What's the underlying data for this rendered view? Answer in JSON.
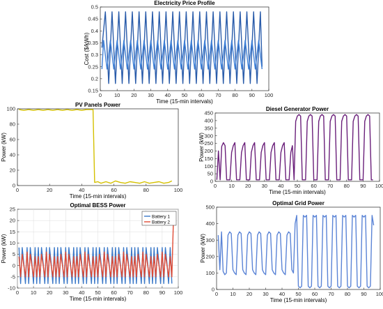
{
  "chart_data": [
    {
      "id": "price",
      "type": "line",
      "title": "Electricity Price Profile",
      "xlabel": "Time (15-min intervals)",
      "ylabel": "Cost ($/kWh)",
      "xlim": [
        0,
        100
      ],
      "ylim": [
        0.15,
        0.5
      ],
      "xticks": [
        "0",
        "10",
        "20",
        "30",
        "40",
        "50",
        "60",
        "70",
        "80",
        "90",
        "100"
      ],
      "yticks": [
        "0.15",
        "0.2",
        "0.25",
        "0.3",
        "0.35",
        "0.4",
        "0.45",
        "0.5"
      ],
      "grid": false,
      "series": [
        {
          "color": "#2a5caa",
          "x": [
            1,
            3,
            5,
            7,
            9,
            11,
            13,
            15,
            17,
            19,
            21,
            23,
            25,
            27,
            29,
            31,
            33,
            35,
            37,
            39,
            41,
            43,
            45,
            47,
            49,
            51,
            53,
            55,
            57,
            59,
            61,
            63,
            65,
            67,
            69,
            71,
            73,
            75,
            77,
            79,
            81,
            83,
            85,
            87,
            89,
            91,
            93,
            95,
            96
          ],
          "values": [
            0.33,
            0.48,
            0.18,
            0.48,
            0.18,
            0.48,
            0.18,
            0.48,
            0.18,
            0.48,
            0.18,
            0.48,
            0.18,
            0.48,
            0.18,
            0.48,
            0.18,
            0.48,
            0.18,
            0.48,
            0.18,
            0.48,
            0.18,
            0.48,
            0.18,
            0.48,
            0.18,
            0.48,
            0.18,
            0.48,
            0.18,
            0.48,
            0.18,
            0.48,
            0.18,
            0.48,
            0.18,
            0.48,
            0.18,
            0.48,
            0.18,
            0.48,
            0.18,
            0.48,
            0.18,
            0.48,
            0.18,
            0.48,
            0.25
          ]
        },
        {
          "color": "#3d7fd6",
          "x": [
            1,
            2,
            4,
            6,
            8,
            10,
            12,
            14,
            16,
            18,
            20,
            22,
            24,
            26,
            28,
            30,
            32,
            34,
            36,
            38,
            40,
            42,
            44,
            46,
            48,
            50,
            52,
            54,
            56,
            58,
            60,
            62,
            64,
            66,
            68,
            70,
            72,
            74,
            76,
            78,
            80,
            82,
            84,
            86,
            88,
            90,
            92,
            94,
            96
          ],
          "values": [
            0.24,
            0.36,
            0.24,
            0.36,
            0.24,
            0.36,
            0.24,
            0.36,
            0.24,
            0.36,
            0.24,
            0.36,
            0.24,
            0.36,
            0.24,
            0.36,
            0.24,
            0.36,
            0.24,
            0.36,
            0.24,
            0.36,
            0.24,
            0.36,
            0.24,
            0.36,
            0.24,
            0.36,
            0.24,
            0.36,
            0.24,
            0.36,
            0.24,
            0.36,
            0.24,
            0.36,
            0.24,
            0.36,
            0.24,
            0.36,
            0.24,
            0.36,
            0.24,
            0.36,
            0.24,
            0.36,
            0.24,
            0.36,
            0.24
          ]
        }
      ]
    },
    {
      "id": "pv",
      "type": "line",
      "title": "PV Panels Power",
      "xlabel": "Time (15-min intervals)",
      "ylabel": "Power (kW)",
      "xlim": [
        0,
        100
      ],
      "ylim": [
        0,
        100
      ],
      "xticks": [
        "0",
        "20",
        "40",
        "60",
        "80",
        "100"
      ],
      "yticks": [
        "0",
        "20",
        "40",
        "60",
        "80",
        "100"
      ],
      "grid": false,
      "series": [
        {
          "color": "#d4c000",
          "x": [
            1,
            4,
            7,
            10,
            13,
            16,
            19,
            22,
            25,
            28,
            31,
            34,
            37,
            40,
            43,
            46,
            47,
            48,
            50,
            52,
            55,
            58,
            61,
            64,
            67,
            70,
            73,
            76,
            79,
            82,
            85,
            88,
            91,
            94,
            96
          ],
          "values": [
            99,
            98,
            99,
            98,
            99,
            98,
            99,
            98,
            99,
            98,
            99,
            98,
            99,
            98,
            99,
            99,
            99,
            4,
            5,
            3,
            5,
            3,
            6,
            4,
            3,
            5,
            4,
            3,
            5,
            3,
            4,
            5,
            3,
            4,
            6
          ]
        }
      ]
    },
    {
      "id": "diesel",
      "type": "line",
      "title": "Diesel Generator Power",
      "xlabel": "Time (15-min intervals)",
      "ylabel": "Power (kW)",
      "xlim": [
        0,
        100
      ],
      "ylim": [
        0,
        450
      ],
      "xticks": [
        "0",
        "10",
        "20",
        "30",
        "40",
        "50",
        "60",
        "70",
        "80",
        "90",
        "100"
      ],
      "yticks": [
        "0",
        "50",
        "100",
        "150",
        "200",
        "250",
        "300",
        "350",
        "400",
        "450"
      ],
      "grid": false,
      "series": [
        {
          "color": "#6a1f7a",
          "x": [
            1,
            2,
            3,
            4,
            5,
            6,
            7,
            8,
            9,
            10,
            11,
            12,
            13,
            14,
            15,
            16,
            17,
            18,
            19,
            20,
            21,
            22,
            23,
            24,
            25,
            26,
            27,
            28,
            29,
            30,
            31,
            32,
            33,
            34,
            35,
            36,
            37,
            38,
            39,
            40,
            41,
            42,
            43,
            44,
            45,
            46,
            47,
            48,
            49,
            50,
            51,
            52,
            53,
            54,
            55,
            56,
            57,
            58,
            59,
            60,
            61,
            62,
            63,
            64,
            65,
            66,
            67,
            68,
            69,
            70,
            71,
            72,
            73,
            74,
            75,
            76,
            77,
            78,
            79,
            80,
            81,
            82,
            83,
            84,
            85,
            86,
            87,
            88,
            89,
            90,
            91,
            92,
            93,
            94,
            95,
            96
          ],
          "values": [
            10,
            200,
            10,
            230,
            255,
            235,
            10,
            10,
            10,
            190,
            235,
            255,
            10,
            10,
            10,
            190,
            235,
            255,
            10,
            10,
            10,
            190,
            235,
            255,
            10,
            10,
            10,
            190,
            235,
            255,
            10,
            10,
            10,
            190,
            235,
            255,
            10,
            10,
            10,
            190,
            235,
            255,
            10,
            10,
            10,
            190,
            235,
            10,
            395,
            430,
            440,
            430,
            10,
            10,
            10,
            395,
            430,
            440,
            430,
            10,
            10,
            10,
            395,
            430,
            440,
            430,
            10,
            10,
            10,
            395,
            430,
            440,
            430,
            10,
            10,
            10,
            395,
            430,
            440,
            430,
            10,
            10,
            10,
            395,
            430,
            440,
            430,
            10,
            10,
            10,
            395,
            430,
            440,
            430,
            10,
            10
          ]
        }
      ]
    },
    {
      "id": "bess",
      "type": "line",
      "title": "Optimal BESS Power",
      "xlabel": "Time (15-min intervals)",
      "ylabel": "Power (kW)",
      "xlim": [
        0,
        100
      ],
      "ylim": [
        -10,
        25
      ],
      "xticks": [
        "0",
        "10",
        "20",
        "30",
        "40",
        "50",
        "60",
        "70",
        "80",
        "90",
        "100"
      ],
      "yticks": [
        "-10",
        "-5",
        "0",
        "5",
        "10",
        "15",
        "20",
        "25"
      ],
      "grid": true,
      "legend": "top-right",
      "series": [
        {
          "name": "Battery 1",
          "color": "#3a78c8"
        },
        {
          "name": "Battery 2",
          "color": "#e04b35"
        }
      ]
    },
    {
      "id": "grid",
      "type": "line",
      "title": "Optimal Grid Power",
      "xlabel": "Time (15-min intervals)",
      "ylabel": "Power (kW)",
      "xlim": [
        0,
        100
      ],
      "ylim": [
        0,
        500
      ],
      "xticks": [
        "0",
        "10",
        "20",
        "30",
        "40",
        "50",
        "60",
        "70",
        "80",
        "90",
        "100"
      ],
      "yticks": [
        "0",
        "100",
        "200",
        "300",
        "400",
        "500"
      ],
      "grid": false,
      "series": [
        {
          "color": "#5b84d6",
          "x": [
            1,
            2,
            3,
            4,
            5,
            6,
            7,
            8,
            9,
            10,
            11,
            12,
            13,
            14,
            15,
            16,
            17,
            18,
            19,
            20,
            21,
            22,
            23,
            24,
            25,
            26,
            27,
            28,
            29,
            30,
            31,
            32,
            33,
            34,
            35,
            36,
            37,
            38,
            39,
            40,
            41,
            42,
            43,
            44,
            45,
            46,
            47,
            48,
            49,
            50,
            51,
            52,
            53,
            54,
            55,
            56,
            57,
            58,
            59,
            60,
            61,
            62,
            63,
            64,
            65,
            66,
            67,
            68,
            69,
            70,
            71,
            72,
            73,
            74,
            75,
            76,
            77,
            78,
            79,
            80,
            81,
            82,
            83,
            84,
            85,
            86,
            87,
            88,
            89,
            90,
            91,
            92,
            93,
            94,
            95,
            96
          ],
          "values": [
            330,
            120,
            350,
            110,
            90,
            100,
            330,
            350,
            340,
            120,
            100,
            90,
            330,
            350,
            340,
            120,
            100,
            90,
            330,
            350,
            340,
            120,
            100,
            90,
            330,
            350,
            340,
            120,
            100,
            90,
            330,
            350,
            340,
            120,
            100,
            90,
            330,
            350,
            340,
            120,
            100,
            90,
            330,
            350,
            340,
            120,
            100,
            400,
            450,
            20,
            10,
            20,
            450,
            440,
            450,
            20,
            10,
            20,
            450,
            440,
            450,
            20,
            10,
            20,
            450,
            440,
            450,
            20,
            10,
            20,
            450,
            440,
            450,
            20,
            10,
            20,
            450,
            440,
            450,
            20,
            10,
            20,
            450,
            440,
            450,
            20,
            10,
            20,
            450,
            440,
            450,
            20,
            10,
            20,
            450,
            390
          ]
        }
      ]
    }
  ]
}
